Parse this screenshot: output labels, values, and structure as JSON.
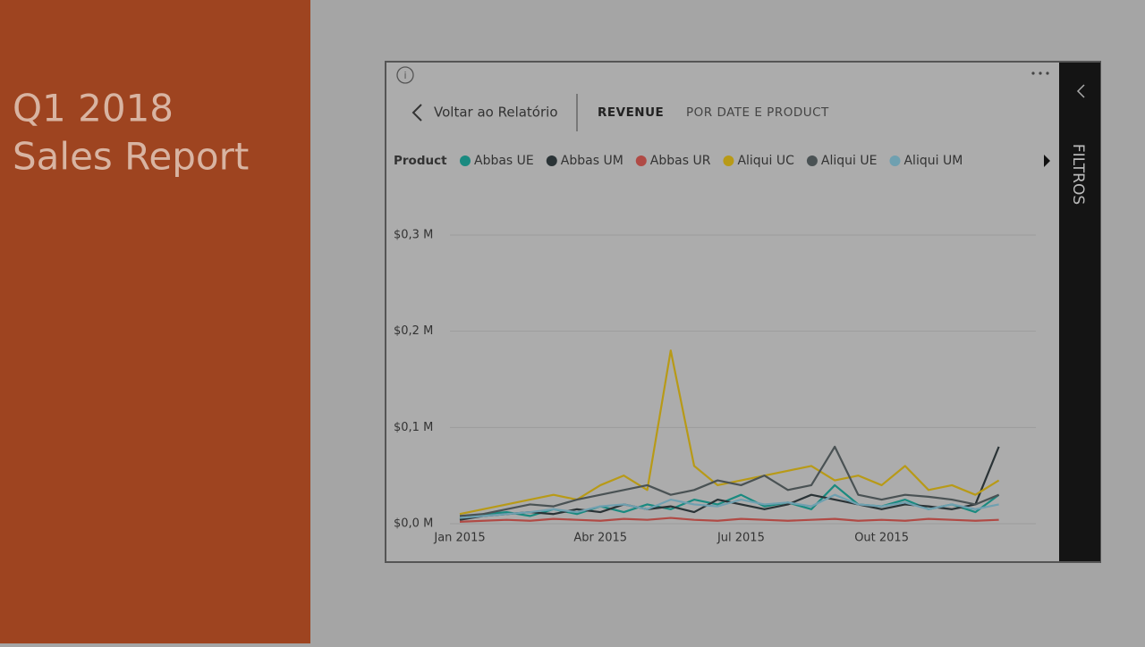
{
  "sidebar": {
    "title_line1": "Q1 2018",
    "title_line2": "Sales Report"
  },
  "toolbar": {
    "back_label": "Voltar ao Relatório"
  },
  "filters_pane": {
    "label": "FILTROS"
  },
  "chart_data": {
    "type": "line",
    "title": "REVENUE",
    "subtitle": "POR DATE E PRODUCT",
    "legend_title": "Product",
    "categories": [
      "Jan 2015",
      null,
      null,
      null,
      null,
      null,
      "Abr 2015",
      null,
      null,
      null,
      null,
      null,
      "Jul 2015",
      null,
      null,
      null,
      null,
      null,
      "Out 2015",
      null,
      null,
      null,
      null,
      null
    ],
    "series": [
      {
        "name": "Abbas UE",
        "color": "#1a8a80",
        "values": [
          0.005,
          0.01,
          0.012,
          0.008,
          0.015,
          0.01,
          0.018,
          0.012,
          0.02,
          0.015,
          0.025,
          0.02,
          0.03,
          0.018,
          0.022,
          0.015,
          0.04,
          0.02,
          0.018,
          0.025,
          0.015,
          0.02,
          0.012,
          0.03
        ]
      },
      {
        "name": "Abbas UM",
        "color": "#2a3336",
        "values": [
          0.004,
          0.008,
          0.01,
          0.012,
          0.01,
          0.015,
          0.012,
          0.02,
          0.015,
          0.018,
          0.012,
          0.025,
          0.02,
          0.015,
          0.02,
          0.03,
          0.025,
          0.02,
          0.015,
          0.02,
          0.018,
          0.015,
          0.02,
          0.08
        ]
      },
      {
        "name": "Abbas UR",
        "color": "#b04a45",
        "values": [
          0.002,
          0.003,
          0.004,
          0.003,
          0.005,
          0.004,
          0.003,
          0.005,
          0.004,
          0.006,
          0.004,
          0.003,
          0.005,
          0.004,
          0.003,
          0.004,
          0.005,
          0.003,
          0.004,
          0.003,
          0.005,
          0.004,
          0.003,
          0.004
        ]
      },
      {
        "name": "Aliqui UC",
        "color": "#b89a17",
        "values": [
          0.01,
          0.015,
          0.02,
          0.025,
          0.03,
          0.025,
          0.04,
          0.05,
          0.035,
          0.18,
          0.06,
          0.04,
          0.045,
          0.05,
          0.055,
          0.06,
          0.045,
          0.05,
          0.04,
          0.06,
          0.035,
          0.04,
          0.03,
          0.045
        ]
      },
      {
        "name": "Aliqui UE",
        "color": "#4a5254",
        "values": [
          0.008,
          0.01,
          0.015,
          0.02,
          0.018,
          0.025,
          0.03,
          0.035,
          0.04,
          0.03,
          0.035,
          0.045,
          0.04,
          0.05,
          0.035,
          0.04,
          0.08,
          0.03,
          0.025,
          0.03,
          0.028,
          0.025,
          0.02,
          0.03
        ]
      },
      {
        "name": "Aliqui UM",
        "color": "#6fa0b0",
        "values": [
          0.006,
          0.008,
          0.01,
          0.012,
          0.015,
          0.012,
          0.018,
          0.02,
          0.015,
          0.025,
          0.02,
          0.018,
          0.025,
          0.02,
          0.022,
          0.018,
          0.03,
          0.02,
          0.018,
          0.022,
          0.015,
          0.02,
          0.015,
          0.02
        ]
      }
    ],
    "ylim": [
      0,
      0.33
    ],
    "yticks": [
      {
        "value": 0,
        "label": "$0,0 M"
      },
      {
        "value": 0.1,
        "label": "$0,1 M"
      },
      {
        "value": 0.2,
        "label": "$0,2 M"
      },
      {
        "value": 0.3,
        "label": "$0,3 M"
      }
    ],
    "grid": true
  }
}
